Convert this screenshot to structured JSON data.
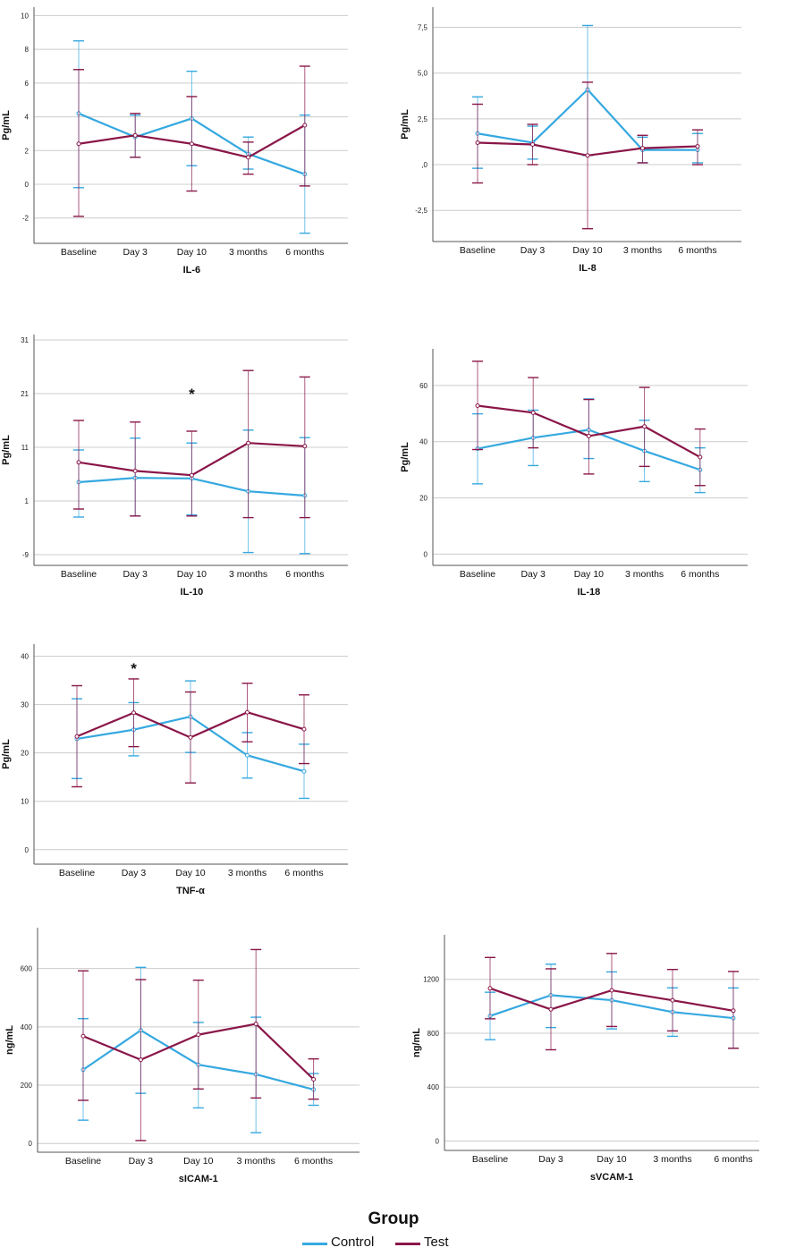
{
  "chart_data": [
    {
      "type": "line",
      "id": "il6",
      "xlabel": "IL-6",
      "ylabel": "Pg/mL",
      "categories": [
        "Baseline",
        "Day 3",
        "Day 10",
        "3 months",
        "6 months"
      ],
      "ylim": [
        -3.5,
        10.5
      ],
      "yticks": [
        -2,
        0,
        2,
        4,
        6,
        8,
        10
      ],
      "ytick_labels": [
        "-2",
        "0",
        "2",
        "4",
        "6",
        "8",
        "10"
      ],
      "series": [
        {
          "name": "Control",
          "values": [
            4.2,
            2.8,
            3.9,
            1.8,
            0.6
          ],
          "lower": [
            -0.2,
            1.6,
            1.1,
            0.9,
            -2.9
          ],
          "upper": [
            8.5,
            4.1,
            6.7,
            2.8,
            4.1
          ]
        },
        {
          "name": "Test",
          "values": [
            2.4,
            2.9,
            2.4,
            1.6,
            3.5
          ],
          "lower": [
            -1.9,
            1.6,
            -0.4,
            0.6,
            -0.1
          ],
          "upper": [
            6.8,
            4.2,
            5.2,
            2.5,
            7.0
          ]
        }
      ],
      "annotations": []
    },
    {
      "type": "line",
      "id": "il8",
      "xlabel": "IL-8",
      "ylabel": "Pg/mL",
      "categories": [
        "Baseline",
        "Day 3",
        "Day 10",
        "3 months",
        "6 months"
      ],
      "ylim": [
        -4.2,
        8.6
      ],
      "yticks": [
        -2.5,
        0,
        2.5,
        5,
        7.5
      ],
      "ytick_labels": [
        "-2,5",
        ",0",
        "2,5",
        "5,0",
        "7,5"
      ],
      "series": [
        {
          "name": "Control",
          "values": [
            1.7,
            1.2,
            4.1,
            0.8,
            0.8
          ],
          "lower": [
            -0.2,
            0.3,
            0.5,
            0.1,
            0.1
          ],
          "upper": [
            3.7,
            2.1,
            7.6,
            1.5,
            1.7
          ]
        },
        {
          "name": "Test",
          "values": [
            1.2,
            1.1,
            0.5,
            0.9,
            1.0
          ],
          "lower": [
            -1.0,
            0.0,
            -3.5,
            0.1,
            0.0
          ],
          "upper": [
            3.3,
            2.2,
            4.5,
            1.6,
            1.9
          ]
        }
      ],
      "annotations": []
    },
    {
      "type": "line",
      "id": "il10",
      "xlabel": "IL-10",
      "ylabel": "Pg/mL",
      "categories": [
        "Baseline",
        "Day 3",
        "Day 10",
        "3 months",
        "6 months"
      ],
      "ylim": [
        -11,
        32
      ],
      "yticks": [
        -9,
        1,
        11,
        21,
        31
      ],
      "ytick_labels": [
        "-9",
        "1",
        "11",
        "21",
        "31"
      ],
      "series": [
        {
          "name": "Control",
          "values": [
            4.5,
            5.3,
            5.2,
            2.8,
            2.0
          ],
          "lower": [
            -2.0,
            -1.8,
            -1.6,
            -8.6,
            -8.8
          ],
          "upper": [
            10.5,
            12.7,
            11.8,
            14.2,
            12.8
          ]
        },
        {
          "name": "Test",
          "values": [
            8.2,
            6.6,
            5.8,
            11.8,
            11.2
          ],
          "lower": [
            -0.5,
            -1.8,
            -1.8,
            -2.1,
            -2.1
          ],
          "upper": [
            16.0,
            15.7,
            14.0,
            25.3,
            24.1
          ]
        }
      ],
      "annotations": [
        {
          "text": "*",
          "category": "Day 10",
          "value": 21
        }
      ]
    },
    {
      "type": "line",
      "id": "il18",
      "xlabel": "IL-18",
      "ylabel": "Pg/mL",
      "categories": [
        "Baseline",
        "Day 3",
        "Day 10",
        "3 months",
        "6 months"
      ],
      "ylim": [
        -4,
        73
      ],
      "yticks": [
        0,
        20,
        40,
        60
      ],
      "ytick_labels": [
        "0",
        "20",
        "40",
        "60"
      ],
      "series": [
        {
          "name": "Control",
          "values": [
            37.5,
            41.4,
            44.2,
            36.7,
            30.0
          ],
          "lower": [
            25.0,
            31.5,
            34.0,
            25.8,
            21.9
          ],
          "upper": [
            49.9,
            51.2,
            55.2,
            47.6,
            37.8
          ]
        },
        {
          "name": "Test",
          "values": [
            52.8,
            50.3,
            42.0,
            45.4,
            34.5
          ],
          "lower": [
            37.2,
            37.8,
            28.5,
            31.2,
            24.4
          ],
          "upper": [
            68.6,
            62.8,
            55.0,
            59.3,
            44.5
          ]
        }
      ],
      "annotations": []
    },
    {
      "type": "line",
      "id": "tnf",
      "xlabel": "TNF-α",
      "ylabel": "Pg/mL",
      "categories": [
        "Baseline",
        "Day 3",
        "Day 10",
        "3 months",
        "6 months"
      ],
      "ylim": [
        -3,
        42.5
      ],
      "yticks": [
        0,
        10,
        20,
        30,
        40
      ],
      "ytick_labels": [
        "0",
        "10",
        "20",
        "30",
        "40"
      ],
      "series": [
        {
          "name": "Control",
          "values": [
            22.9,
            24.8,
            27.5,
            19.5,
            16.2
          ],
          "lower": [
            14.7,
            19.4,
            20.1,
            14.8,
            10.6
          ],
          "upper": [
            31.2,
            30.4,
            34.9,
            24.2,
            21.8
          ]
        },
        {
          "name": "Test",
          "values": [
            23.4,
            28.3,
            23.2,
            28.4,
            24.9
          ],
          "lower": [
            13.0,
            21.3,
            13.8,
            22.3,
            17.8
          ],
          "upper": [
            33.9,
            35.3,
            32.6,
            34.4,
            32.0
          ]
        }
      ],
      "annotations": [
        {
          "text": "*",
          "category": "Day 3",
          "value": 37.5
        }
      ]
    },
    {
      "type": "line",
      "id": "sicam1",
      "xlabel": "sICAM-1",
      "ylabel": "ng/mL",
      "categories": [
        "Baseline",
        "Day 3",
        "Day 10",
        "3 months",
        "6 months"
      ],
      "ylim": [
        -30,
        740
      ],
      "yticks": [
        0,
        200,
        400,
        600
      ],
      "ytick_labels": [
        "0",
        "200",
        "400",
        "600"
      ],
      "series": [
        {
          "name": "Control",
          "values": [
            253,
            388,
            270,
            237,
            185
          ],
          "lower": [
            80,
            172,
            122,
            37,
            131
          ],
          "upper": [
            428,
            604,
            415,
            433,
            240
          ]
        },
        {
          "name": "Test",
          "values": [
            368,
            287,
            373,
            410,
            220
          ],
          "lower": [
            148,
            10,
            187,
            156,
            152
          ],
          "upper": [
            592,
            562,
            560,
            665,
            290
          ]
        }
      ],
      "annotations": []
    },
    {
      "type": "line",
      "id": "svcam1",
      "xlabel": "sVCAM-1",
      "ylabel": "ng/mL",
      "categories": [
        "Baseline",
        "Day 3",
        "Day 10",
        "3 months",
        "6 months"
      ],
      "ylim": [
        -70,
        1530
      ],
      "yticks": [
        0,
        400,
        800,
        1200
      ],
      "ytick_labels": [
        "0",
        "400",
        "800",
        "1200"
      ],
      "series": [
        {
          "name": "Control",
          "values": [
            928,
            1082,
            1045,
            957,
            912
          ],
          "lower": [
            752,
            842,
            832,
            777,
            688
          ],
          "upper": [
            1104,
            1312,
            1255,
            1137,
            1136
          ]
        },
        {
          "name": "Test",
          "values": [
            1133,
            977,
            1118,
            1044,
            967
          ],
          "lower": [
            907,
            677,
            850,
            817,
            688
          ],
          "upper": [
            1362,
            1278,
            1392,
            1273,
            1258
          ]
        }
      ],
      "annotations": []
    }
  ],
  "colors": {
    "Control": "#35a8e0",
    "Test": "#8a1648",
    "grid": "#cccccc",
    "axis": "#555555"
  },
  "legend": {
    "title": "Group",
    "items": [
      {
        "label": "Control"
      },
      {
        "label": "Test"
      }
    ]
  }
}
